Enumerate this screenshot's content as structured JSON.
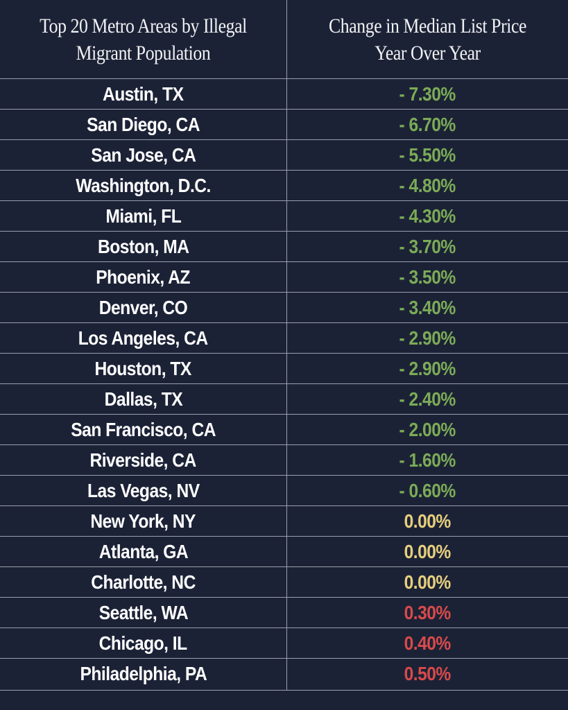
{
  "colors": {
    "background": "#1c2236",
    "grid_line": "#9aa0ad",
    "negative": "#7bab57",
    "zero": "#e6cf7c",
    "positive": "#d84a4a",
    "text": "#ffffff"
  },
  "chart_data": {
    "type": "table",
    "columns": [
      "Top 20 Metro Areas by Illegal Migrant Population",
      "Change in Median List Price Year Over Year"
    ],
    "header_lines": {
      "left": [
        "Top 20 Metro Areas by Illegal",
        "Migrant Population"
      ],
      "right": [
        "Change in Median List Price",
        "Year Over Year"
      ]
    },
    "rows": [
      {
        "metro": "Austin, TX",
        "change_text": "- 7.30%",
        "value": -7.3,
        "sign": "negative"
      },
      {
        "metro": "San Diego, CA",
        "change_text": "- 6.70%",
        "value": -6.7,
        "sign": "negative"
      },
      {
        "metro": "San Jose, CA",
        "change_text": "- 5.50%",
        "value": -5.5,
        "sign": "negative"
      },
      {
        "metro": "Washington, D.C.",
        "change_text": "- 4.80%",
        "value": -4.8,
        "sign": "negative"
      },
      {
        "metro": "Miami, FL",
        "change_text": "- 4.30%",
        "value": -4.3,
        "sign": "negative"
      },
      {
        "metro": "Boston, MA",
        "change_text": "- 3.70%",
        "value": -3.7,
        "sign": "negative"
      },
      {
        "metro": "Phoenix, AZ",
        "change_text": "- 3.50%",
        "value": -3.5,
        "sign": "negative"
      },
      {
        "metro": "Denver, CO",
        "change_text": "- 3.40%",
        "value": -3.4,
        "sign": "negative"
      },
      {
        "metro": "Los Angeles, CA",
        "change_text": "- 2.90%",
        "value": -2.9,
        "sign": "negative"
      },
      {
        "metro": "Houston, TX",
        "change_text": "- 2.90%",
        "value": -2.9,
        "sign": "negative"
      },
      {
        "metro": "Dallas, TX",
        "change_text": "- 2.40%",
        "value": -2.4,
        "sign": "negative"
      },
      {
        "metro": "San Francisco, CA",
        "change_text": "- 2.00%",
        "value": -2.0,
        "sign": "negative"
      },
      {
        "metro": "Riverside, CA",
        "change_text": "- 1.60%",
        "value": -1.6,
        "sign": "negative"
      },
      {
        "metro": "Las Vegas, NV",
        "change_text": "- 0.60%",
        "value": -0.6,
        "sign": "negative"
      },
      {
        "metro": "New York, NY",
        "change_text": "0.00%",
        "value": 0.0,
        "sign": "zero"
      },
      {
        "metro": "Atlanta, GA",
        "change_text": "0.00%",
        "value": 0.0,
        "sign": "zero"
      },
      {
        "metro": "Charlotte, NC",
        "change_text": "0.00%",
        "value": 0.0,
        "sign": "zero"
      },
      {
        "metro": "Seattle, WA",
        "change_text": "0.30%",
        "value": 0.3,
        "sign": "positive"
      },
      {
        "metro": "Chicago, IL",
        "change_text": "0.40%",
        "value": 0.4,
        "sign": "positive"
      },
      {
        "metro": "Philadelphia, PA",
        "change_text": "0.50%",
        "value": 0.5,
        "sign": "positive"
      }
    ]
  }
}
